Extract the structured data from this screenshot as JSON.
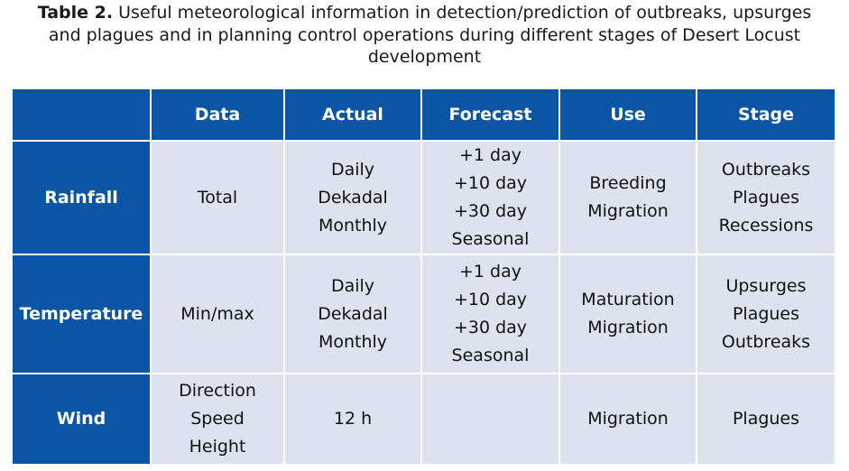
{
  "caption": {
    "label": "Table 2.",
    "line1": "Useful meteorological information in detection/prediction of outbreaks, upsurges",
    "line2": "and plagues and in planning control operations during different stages of Desert Locust",
    "line3": "development"
  },
  "table": {
    "headers": [
      "Data",
      "Actual",
      "Forecast",
      "Use",
      "Stage"
    ],
    "rows": [
      {
        "label": "Rainfall",
        "data": [
          "Total"
        ],
        "actual": [
          "Daily",
          "Dekadal",
          "Monthly"
        ],
        "forecast": [
          "+1 day",
          "+10 day",
          "+30 day",
          "Seasonal"
        ],
        "use": [
          "Breeding",
          "Migration"
        ],
        "stage": [
          "Outbreaks",
          "Plagues",
          "Recessions"
        ]
      },
      {
        "label": "Temperature",
        "data": [
          "Min/max"
        ],
        "actual": [
          "Daily",
          "Dekadal",
          "Monthly"
        ],
        "forecast": [
          "+1 day",
          "+10 day",
          "+30 day",
          "Seasonal"
        ],
        "use": [
          "Maturation",
          "Migration"
        ],
        "stage": [
          "Upsurges",
          "Plagues",
          "Outbreaks"
        ]
      },
      {
        "label": "Wind",
        "data": [
          "Direction",
          "Speed",
          "Height"
        ],
        "actual": [
          "12 h"
        ],
        "forecast": [],
        "use": [
          "Migration"
        ],
        "stage": [
          "Plagues"
        ]
      }
    ]
  },
  "colors": {
    "header_blue": "#0a55a6",
    "cell_gray": "#dde2ef"
  }
}
